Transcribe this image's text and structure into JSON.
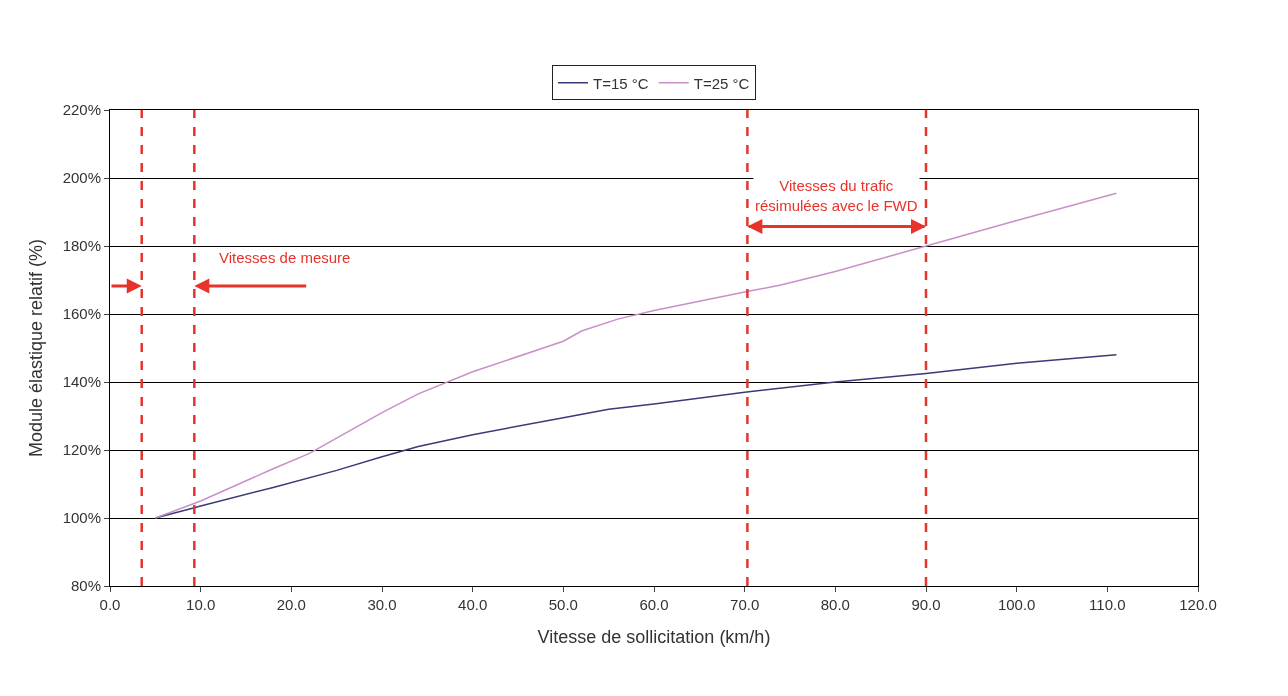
{
  "chart_data": {
    "type": "line",
    "xlabel": "Vitesse de sollicitation (km/h)",
    "ylabel": "Module élastique relatif (%)",
    "series": [
      {
        "name": "T=15 °C",
        "color": "#3a3a78",
        "x": [
          5,
          10,
          18,
          25,
          30,
          34,
          40,
          50,
          55,
          60,
          70,
          80,
          90,
          100,
          111
        ],
        "values": [
          100,
          103.5,
          109,
          114,
          118,
          121,
          124.5,
          129.5,
          132,
          133.5,
          137,
          140,
          142.5,
          145.5,
          148
        ]
      },
      {
        "name": "T=25 °C",
        "color": "#c890c8",
        "x": [
          5,
          10,
          18,
          22,
          30,
          34,
          40,
          50,
          52,
          56,
          60,
          70,
          74,
          80,
          90,
          100,
          111
        ],
        "values": [
          100,
          105,
          114.5,
          119,
          131,
          136.5,
          143,
          152,
          155,
          158.5,
          161,
          166.5,
          168.5,
          172.5,
          180,
          187.5,
          195.5
        ]
      }
    ],
    "xlim": [
      0,
      120
    ],
    "xticks": [
      {
        "value": 0,
        "label": "0.0"
      },
      {
        "value": 10,
        "label": "10.0"
      },
      {
        "value": 20,
        "label": "20.0"
      },
      {
        "value": 30,
        "label": "30.0"
      },
      {
        "value": 40,
        "label": "40.0"
      },
      {
        "value": 50,
        "label": "50.0"
      },
      {
        "value": 60,
        "label": "60.0"
      },
      {
        "value": 70,
        "label": "70.0"
      },
      {
        "value": 80,
        "label": "80.0"
      },
      {
        "value": 90,
        "label": "90.0"
      },
      {
        "value": 100,
        "label": "100.0"
      },
      {
        "value": 110,
        "label": "110.0"
      },
      {
        "value": 120,
        "label": "120.0"
      }
    ],
    "ylim": [
      80,
      220
    ],
    "yticks": [
      {
        "value": 80,
        "label": "80%"
      },
      {
        "value": 100,
        "label": "100%"
      },
      {
        "value": 120,
        "label": "120%"
      },
      {
        "value": 140,
        "label": "140%"
      },
      {
        "value": 160,
        "label": "160%"
      },
      {
        "value": 180,
        "label": "180%"
      },
      {
        "value": 200,
        "label": "200%"
      },
      {
        "value": 220,
        "label": "220%"
      }
    ],
    "ref_lines": [
      {
        "axis": "x",
        "value": 3.5,
        "color": "#e8332a",
        "line_style": "dashed"
      },
      {
        "axis": "x",
        "value": 9.3,
        "color": "#e8332a",
        "line_style": "dashed"
      },
      {
        "axis": "x",
        "value": 70.3,
        "color": "#e8332a",
        "line_style": "dashed"
      },
      {
        "axis": "x",
        "value": 90,
        "color": "#e8332a",
        "line_style": "dashed"
      }
    ],
    "annotations": [
      "Vitesses de mesure",
      "Vitesses du trafic\nrésimulées avec le FWD"
    ],
    "grid": "y",
    "legend": "top",
    "marker": "none",
    "line_style": "solid"
  }
}
